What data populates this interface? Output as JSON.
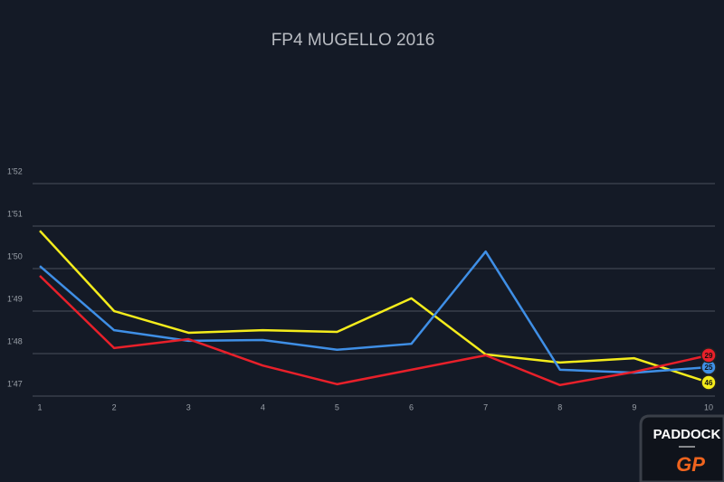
{
  "chart_data": {
    "type": "line",
    "title": "FP4 MUGELLO 2016",
    "x": [
      1,
      2,
      3,
      4,
      5,
      6,
      7,
      8,
      9,
      10
    ],
    "xlim": [
      1,
      10
    ],
    "xticks": [
      1,
      2,
      3,
      4,
      5,
      6,
      7,
      8,
      9,
      10
    ],
    "ylim": [
      107,
      112
    ],
    "yticks": [
      {
        "value": 107,
        "label": "1'47"
      },
      {
        "value": 108,
        "label": "1'48"
      },
      {
        "value": 109,
        "label": "1'49"
      },
      {
        "value": 110,
        "label": "1'50"
      },
      {
        "value": 111,
        "label": "1'51"
      },
      {
        "value": 112,
        "label": "1'52"
      }
    ],
    "grid": true,
    "series": [
      {
        "name": "46",
        "color": "#f4ec1c",
        "values": [
          110.89,
          109.0,
          108.49,
          108.55,
          108.51,
          109.3,
          107.98,
          107.79,
          107.89,
          107.32
        ]
      },
      {
        "name": "25",
        "color": "#3f8fe6",
        "values": [
          110.06,
          108.55,
          108.3,
          108.32,
          108.09,
          108.23,
          110.4,
          107.62,
          107.55,
          107.68
        ]
      },
      {
        "name": "29",
        "color": "#e8202a",
        "values": [
          109.83,
          108.13,
          108.34,
          107.72,
          107.28,
          107.62,
          107.96,
          107.26,
          107.57,
          107.96
        ]
      }
    ]
  },
  "watermark": {
    "top": "PADDOCK",
    "bottom": "GP"
  }
}
